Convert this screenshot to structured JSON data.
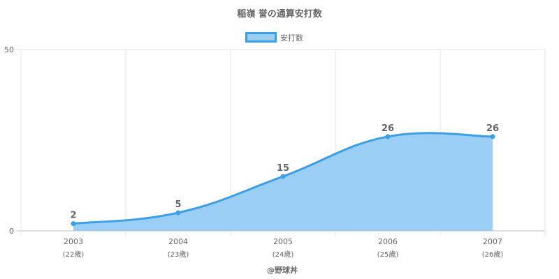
{
  "chart_data": {
    "type": "area",
    "title": "稲嶺 誉の通算安打数",
    "categories": [
      "2003",
      "2004",
      "2005",
      "2006",
      "2007"
    ],
    "ages": [
      "(22歳)",
      "(23歳)",
      "(24歳)",
      "(25歳)",
      "(26歳)"
    ],
    "series": [
      {
        "name": "安打数",
        "values": [
          2,
          5,
          15,
          26,
          26
        ]
      }
    ],
    "ylim": [
      0,
      50
    ],
    "yticks": [
      "0",
      "50"
    ],
    "grid": true,
    "legend": "top-center",
    "colors": {
      "line": "#3c9fe6",
      "fill": "#9bcef5",
      "grid": "#e6e6e6"
    }
  },
  "credit": "@野球丼"
}
